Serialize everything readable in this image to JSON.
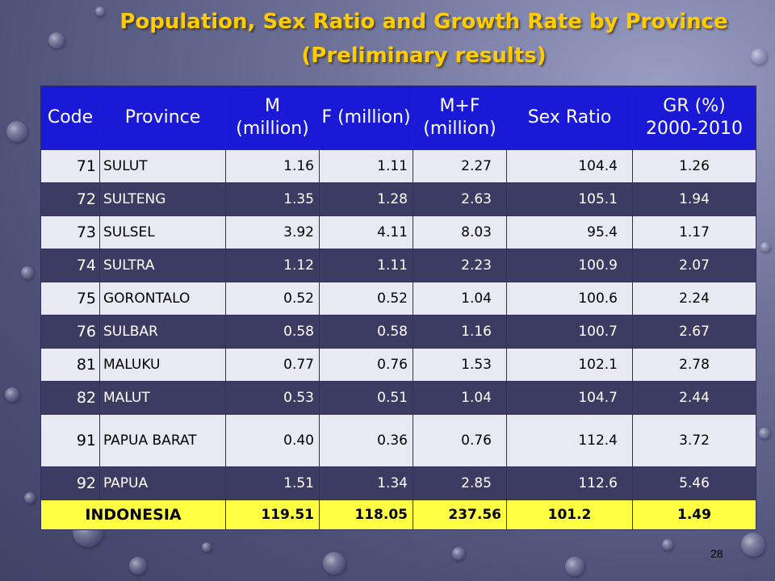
{
  "title_line1": "Population, Sex Ratio and Growth Rate by Province",
  "title_line2": "(Preliminary results)",
  "headers": {
    "code": "Code",
    "province": "Province",
    "m": "M (million)",
    "f": "F (million)",
    "mf": "M+F (million)",
    "sex_ratio": "Sex Ratio",
    "gr_line1": "GR (%)",
    "gr_line2": "2000-2010"
  },
  "rows": [
    {
      "code": "71",
      "province": "SULUT",
      "m": "1.16",
      "f": "1.11",
      "mf": "2.27",
      "sr": "104.4",
      "gr": "1.26"
    },
    {
      "code": "72",
      "province": "SULTENG",
      "m": "1.35",
      "f": "1.28",
      "mf": "2.63",
      "sr": "105.1",
      "gr": "1.94"
    },
    {
      "code": "73",
      "province": "SULSEL",
      "m": "3.92",
      "f": "4.11",
      "mf": "8.03",
      "sr": "95.4",
      "gr": "1.17"
    },
    {
      "code": "74",
      "province": "SULTRA",
      "m": "1.12",
      "f": "1.11",
      "mf": "2.23",
      "sr": "100.9",
      "gr": "2.07"
    },
    {
      "code": "75",
      "province": "GORONTALO",
      "m": "0.52",
      "f": "0.52",
      "mf": "1.04",
      "sr": "100.6",
      "gr": "2.24"
    },
    {
      "code": "76",
      "province": "SULBAR",
      "m": "0.58",
      "f": "0.58",
      "mf": "1.16",
      "sr": "100.7",
      "gr": "2.67"
    },
    {
      "code": "81",
      "province": "MALUKU",
      "m": "0.77",
      "f": "0.76",
      "mf": "1.53",
      "sr": "102.1",
      "gr": "2.78"
    },
    {
      "code": "82",
      "province": "MALUT",
      "m": "0.53",
      "f": "0.51",
      "mf": "1.04",
      "sr": "104.7",
      "gr": "2.44"
    },
    {
      "code": "91",
      "province": "PAPUA BARAT",
      "m": "0.40",
      "f": "0.36",
      "mf": "0.76",
      "sr": "112.4",
      "gr": "3.72"
    },
    {
      "code": "92",
      "province": "PAPUA",
      "m": "1.51",
      "f": "1.34",
      "mf": "2.85",
      "sr": "112.6",
      "gr": "5.46"
    }
  ],
  "total": {
    "label": "INDONESIA",
    "m": "119.51",
    "f": "118.05",
    "mf": "237.56",
    "sr": "101.2",
    "gr": "1.49"
  },
  "page_number": "28"
}
